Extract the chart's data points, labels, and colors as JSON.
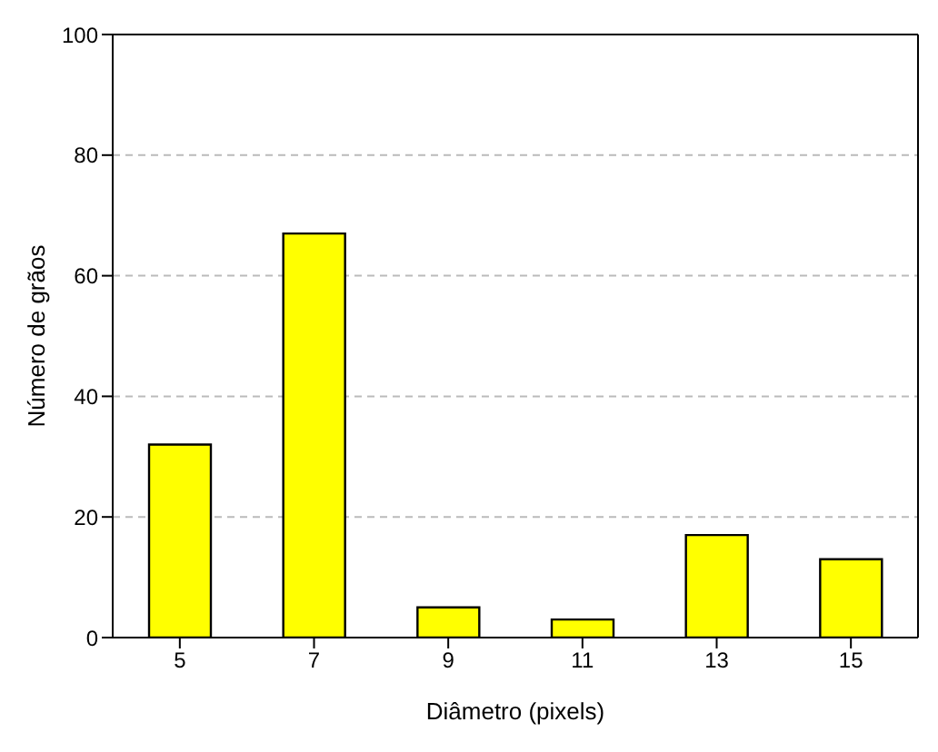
{
  "chart_data": {
    "type": "bar",
    "xlabel": "Diâmetro (pixels)",
    "ylabel": "Número de grãos",
    "categories": [
      "5",
      "7",
      "9",
      "11",
      "13",
      "15"
    ],
    "values": [
      32,
      67,
      5,
      3,
      17,
      13
    ],
    "color": "#ffff00",
    "ylim": [
      0,
      100
    ],
    "yticks": [
      0,
      20,
      40,
      60,
      80,
      100
    ],
    "grid": "y"
  }
}
